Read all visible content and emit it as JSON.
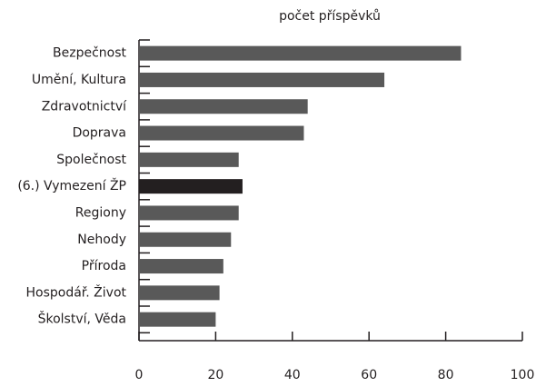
{
  "chart_data": {
    "type": "bar",
    "orientation": "horizontal",
    "title": "počet příspěvků",
    "categories": [
      "Bezpečnost",
      "Umění, Kultura",
      "Zdravotnictví",
      "Doprava",
      "Společnost",
      "(6.) Vymezení ŽP",
      "Regiony",
      "Nehody",
      "Příroda",
      "Hospodář. Život",
      "Školství, Věda"
    ],
    "values": [
      84,
      64,
      44,
      43,
      26,
      27,
      26,
      24,
      22,
      21,
      20
    ],
    "colors": [
      "#595959",
      "#595959",
      "#595959",
      "#595959",
      "#595959",
      "#231f20",
      "#595959",
      "#595959",
      "#595959",
      "#595959",
      "#595959"
    ],
    "xlim": [
      0,
      100
    ],
    "xticks": [
      0,
      20,
      40,
      60,
      80,
      100
    ],
    "grid": false
  }
}
